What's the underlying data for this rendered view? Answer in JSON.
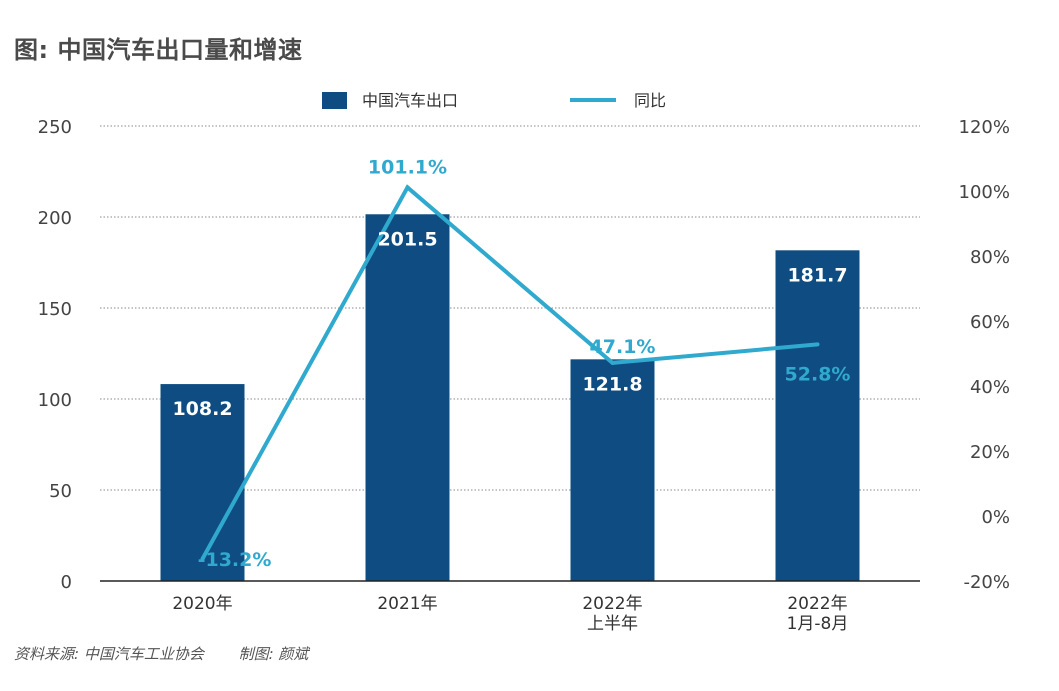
{
  "title": "图: 中国汽车出口量和增速",
  "source": {
    "data_source": "资料来源: 中国汽车工业协会",
    "chart_by": "制图: 颜斌"
  },
  "colors": {
    "bar": "#0f4c81",
    "line": "#30a9cf",
    "grid": "#8a8a8a",
    "axis": "#222222"
  },
  "chart_data": {
    "type": "bar",
    "categories": [
      [
        "2020年"
      ],
      [
        "2021年"
      ],
      [
        "2022年",
        "上半年"
      ],
      [
        "2022年",
        "1月-8月"
      ]
    ],
    "series": [
      {
        "name": "中国汽车出口",
        "type": "bar",
        "axis": "left",
        "values": [
          108.2,
          201.5,
          121.8,
          181.7
        ],
        "labels": [
          "108.2",
          "201.5",
          "121.8",
          "181.7"
        ]
      },
      {
        "name": "同比",
        "type": "line",
        "axis": "right",
        "values": [
          -13.2,
          101.1,
          47.1,
          52.8
        ],
        "labels": [
          "-13.2%",
          "101.1%",
          "47.1%",
          "52.8%"
        ]
      }
    ],
    "y_left": {
      "min": 0,
      "max": 250,
      "ticks": [
        0,
        50,
        100,
        150,
        200,
        250
      ],
      "tick_labels": [
        "0",
        "50",
        "100",
        "150",
        "200",
        "250"
      ]
    },
    "y_right": {
      "min": -20,
      "max": 120,
      "ticks": [
        -20,
        0,
        20,
        40,
        60,
        80,
        100,
        120
      ],
      "tick_labels": [
        "-20%",
        "0%",
        "20%",
        "40%",
        "60%",
        "80%",
        "100%",
        "120%"
      ]
    },
    "grid": true,
    "legend": "top-center"
  }
}
